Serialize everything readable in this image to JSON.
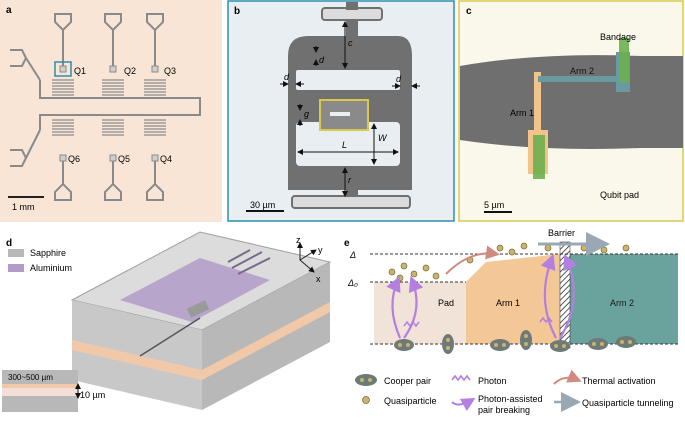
{
  "panels": {
    "a": {
      "label": "a",
      "qubits": [
        "Q1",
        "Q2",
        "Q3",
        "Q6",
        "Q5",
        "Q4"
      ],
      "scalebar": "1 mm",
      "colors": {
        "bg": "#f8e5d6",
        "metal": "#8a8a8a",
        "highlight": "#2a8fb0"
      }
    },
    "b": {
      "label": "b",
      "dims": {
        "c": "c",
        "d_top": "d",
        "d_left": "d",
        "d_right": "d",
        "g": "g",
        "W": "W",
        "L": "L",
        "r": "r"
      },
      "scalebar": "30 µm",
      "colors": {
        "bg": "#e8eef2",
        "border": "#2a8fb0",
        "metal": "#707070",
        "box": "#d8c94a"
      }
    },
    "c": {
      "label": "c",
      "bandage": "Bandage",
      "arm2": "Arm 2",
      "arm1": "Arm 1",
      "qubit_pad": "Qubit pad",
      "scalebar": "5 µm",
      "colors": {
        "bg": "#faf8ea",
        "border": "#d8c94a",
        "pad": "#6f6f6f",
        "arm": "#f2c48a",
        "bandage": "#6ab04c",
        "arm2": "#6a9aa0"
      }
    },
    "d": {
      "label": "d",
      "legend": [
        "Sapphire",
        "Aluminium"
      ],
      "axes": {
        "x": "x",
        "y": "y",
        "z": "z"
      },
      "thickness": "300~500 µm",
      "film": "10 µm",
      "colors": {
        "sapphire": "#b8b8b8",
        "aluminium": "#b29bc8",
        "film": "#f2c9a8"
      }
    },
    "e": {
      "label": "e",
      "barrier": "Barrier",
      "delta": "Δ",
      "delta0": "Δ₀",
      "regions": [
        "Pad",
        "Arm 1",
        "Arm 2"
      ],
      "legend": {
        "cooper_pair": "Cooper pair",
        "quasiparticle": "Quasiparticle",
        "photon": "Photon",
        "photon_pair_1": "Photon-assisted",
        "photon_pair_2": "pair breaking",
        "thermal": "Thermal activation",
        "tunneling": "Quasiparticle tunneling"
      },
      "colors": {
        "pad": "#f1e3d8",
        "arm1": "#f4c796",
        "arm2": "#6aa39d",
        "qp": "#c8b46a",
        "cooper": "#6d7a78",
        "photon": "#b37fe0",
        "thermal": "#d08a80",
        "tunnel": "#9aa8b4"
      }
    }
  }
}
